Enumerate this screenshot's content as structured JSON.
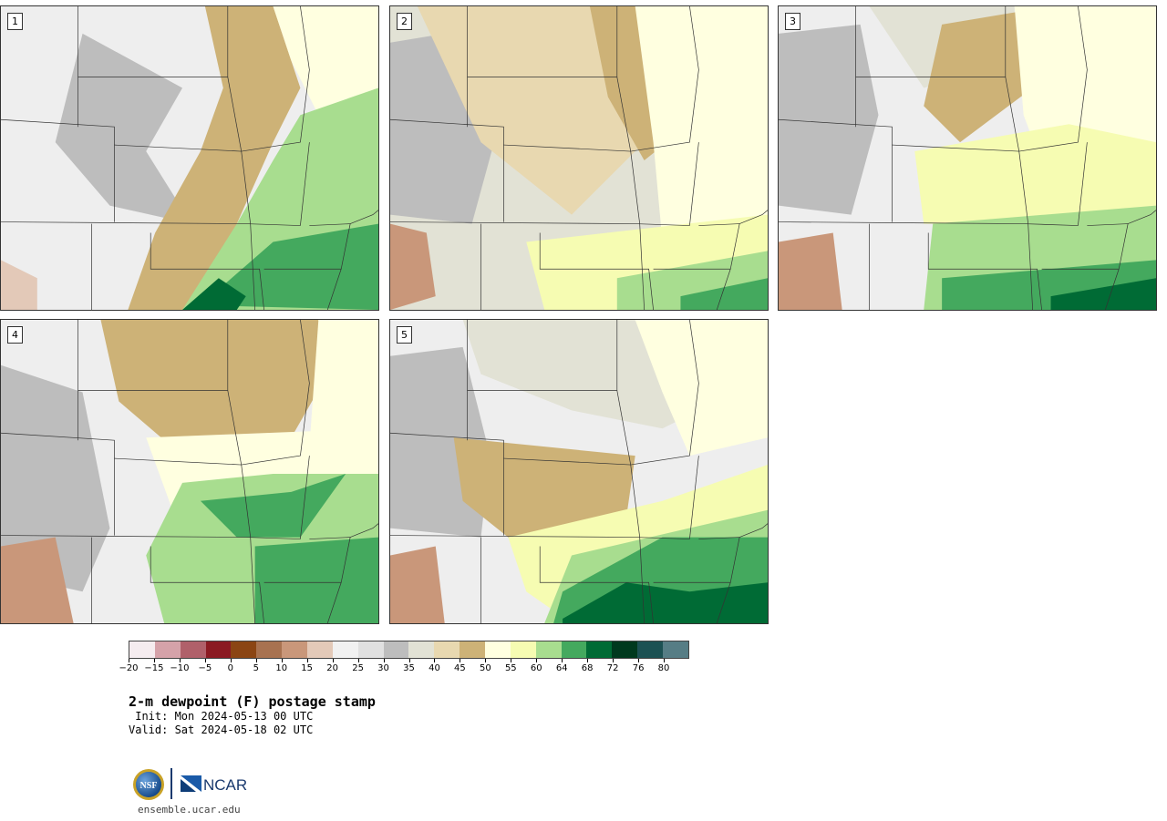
{
  "panels": [
    {
      "label": "1",
      "theme": "dry"
    },
    {
      "label": "2",
      "theme": "drier"
    },
    {
      "label": "3",
      "theme": "mixed"
    },
    {
      "label": "4",
      "theme": "moist"
    },
    {
      "label": "5",
      "theme": "moist-south"
    }
  ],
  "colorbar": {
    "colors": [
      "#f5ecef",
      "#d5a2a9",
      "#b0606a",
      "#8b1a22",
      "#8b4513",
      "#a87250",
      "#c9977a",
      "#e3c9b8",
      "#f1f1f1",
      "#e0e0e0",
      "#bdbdbd",
      "#e2e2d5",
      "#e8d8b0",
      "#cdb277",
      "#ffffe0",
      "#f6fcb2",
      "#a8dd8f",
      "#44a95e",
      "#006b35",
      "#00391e",
      "#1c5153",
      "#567d85"
    ],
    "tick_labels": [
      "−20",
      "−15",
      "−10",
      "−5",
      "0",
      "5",
      "10",
      "15",
      "20",
      "25",
      "30",
      "35",
      "40",
      "45",
      "50",
      "55",
      "60",
      "64",
      "68",
      "72",
      "76",
      "80"
    ]
  },
  "title": "2-m dewpoint (F) postage stamp",
  "init_text": " Init: Mon 2024-05-13 00 UTC",
  "valid_text": "Valid: Sat 2024-05-18 02 UTC",
  "logos": {
    "nsf": "NSF",
    "ncar": "NCAR"
  },
  "site_url": "ensemble.ucar.edu"
}
